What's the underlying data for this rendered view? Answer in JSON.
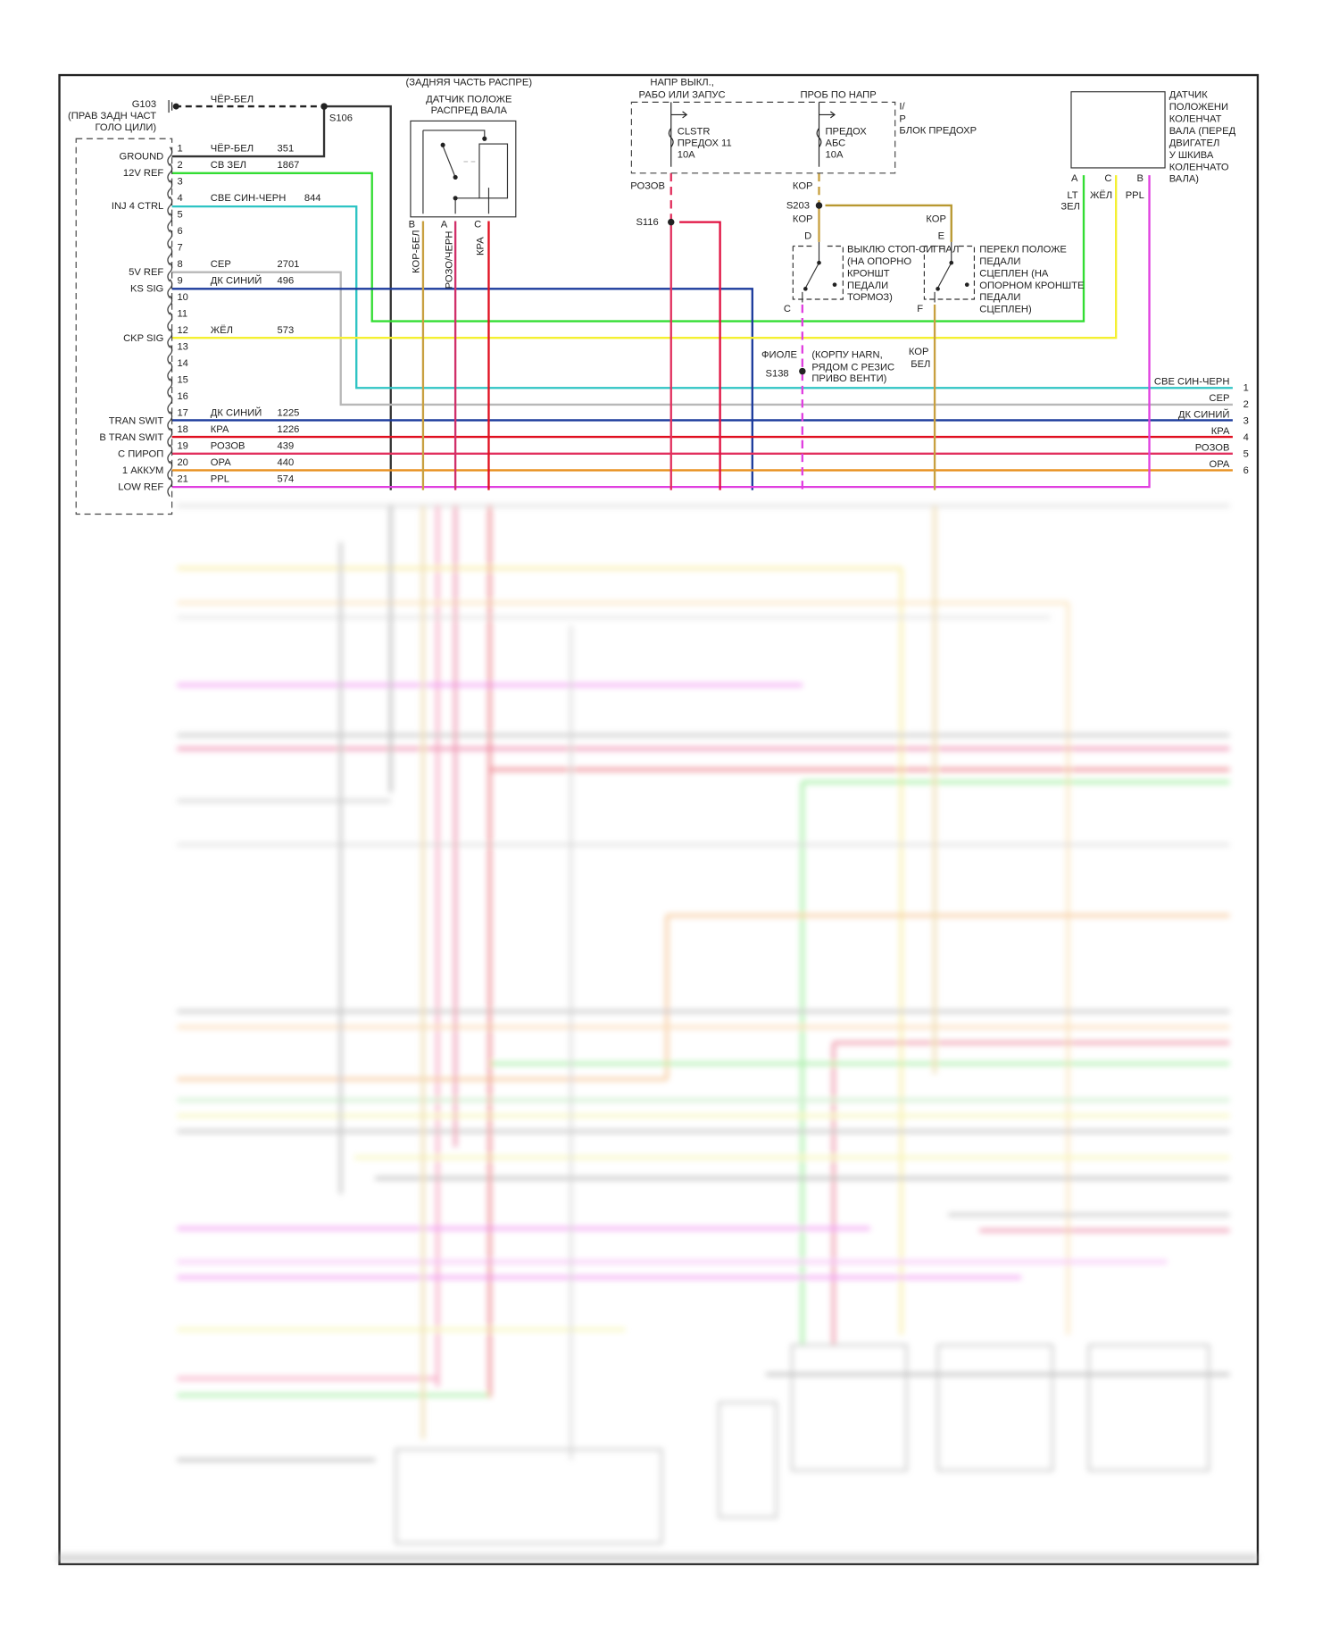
{
  "colors": {
    "black": "#2b2b2b",
    "green": "#33dd33",
    "cyan": "#2ec4c4",
    "gray": "#b8b8b8",
    "dark_blue": "#1c3b9c",
    "yellow": "#f4f030",
    "red": "#e01020",
    "pink": "#e2305e",
    "orange": "#e89020",
    "magenta": "#e040e0",
    "tan": "#c8a040"
  },
  "ground": {
    "id": "G103",
    "note_1": "(ПРАВ ЗАДН ЧАСТ",
    "note_2": "ГОЛО ЦИЛИ)",
    "wire": "ЧЁР-БЕЛ",
    "splice": "S106"
  },
  "pcm_pins": [
    {
      "num": "1",
      "func": "GROUND",
      "color": "ЧЁР-БЕЛ",
      "circuit": "351"
    },
    {
      "num": "2",
      "func": "12V REF",
      "color": "СВ ЗЕЛ",
      "circuit": "1867"
    },
    {
      "num": "3",
      "func": "",
      "color": "",
      "circuit": ""
    },
    {
      "num": "4",
      "func": "INJ 4 CTRL",
      "color": "СВЕ СИН-ЧЕРН",
      "circuit": "844"
    },
    {
      "num": "5",
      "func": "",
      "color": "",
      "circuit": ""
    },
    {
      "num": "6",
      "func": "",
      "color": "",
      "circuit": ""
    },
    {
      "num": "7",
      "func": "",
      "color": "",
      "circuit": ""
    },
    {
      "num": "8",
      "func": "5V REF",
      "color": "СЕР",
      "circuit": "2701"
    },
    {
      "num": "9",
      "func": "KS SIG",
      "color": "ДК СИНИЙ",
      "circuit": "496"
    },
    {
      "num": "10",
      "func": "",
      "color": "",
      "circuit": ""
    },
    {
      "num": "11",
      "func": "",
      "color": "",
      "circuit": ""
    },
    {
      "num": "12",
      "func": "CKP SIG",
      "color": "ЖЁЛ",
      "circuit": "573"
    },
    {
      "num": "13",
      "func": "",
      "color": "",
      "circuit": ""
    },
    {
      "num": "14",
      "func": "",
      "color": "",
      "circuit": ""
    },
    {
      "num": "15",
      "func": "",
      "color": "",
      "circuit": ""
    },
    {
      "num": "16",
      "func": "",
      "color": "",
      "circuit": ""
    },
    {
      "num": "17",
      "func": "TRAN SWIT",
      "color": "ДК СИНИЙ",
      "circuit": "1225"
    },
    {
      "num": "18",
      "func": "B TRAN SWIT",
      "color": "КРА",
      "circuit": "1226"
    },
    {
      "num": "19",
      "func": "С ПИРОП",
      "color": "РОЗОВ",
      "circuit": "439"
    },
    {
      "num": "20",
      "func": "1 АККУМ",
      "color": "ОРА",
      "circuit": "440"
    },
    {
      "num": "21",
      "func": "LOW REF",
      "color": "PPL",
      "circuit": "574"
    }
  ],
  "cam_sensor": {
    "location": "(ЗАДНЯЯ ЧАСТЬ РАСПРЕ)",
    "title_1": "ДАТЧИК ПОЛОЖЕ",
    "title_2": "РАСПРЕД ВАЛА",
    "pins": [
      {
        "pin": "B",
        "wire": "КОР-БЕЛ"
      },
      {
        "pin": "A",
        "wire": "РОЗО/ЧЕРН"
      },
      {
        "pin": "C",
        "wire": "КРА"
      }
    ]
  },
  "fuse_block": {
    "label_1": "НАПР ВЫКЛ.,",
    "label_2": "РАБО ИЛИ ЗАПУС",
    "label_3": "ПРОБ ПО НАПР",
    "side_1": "I/",
    "side_2": "P",
    "side_3": "БЛОК ПРЕДОХР",
    "fuse_a": [
      "CLSTR",
      "ПРЕДОХ 11",
      "10A"
    ],
    "fuse_b": [
      "ПРЕДОХ",
      "АБС",
      "10A"
    ],
    "wire_a": "РОЗОВ",
    "splice_a": "S116",
    "wire_b": "КОР",
    "splice_b": "S203",
    "wire_b2": "КОР",
    "wire_b3": "КОР"
  },
  "brake_switch": {
    "pin_in": "D",
    "pin_out": "C",
    "lines": [
      "ВЫКЛЮ СТОП-СИГНАЛ",
      "(НА ОПОРНО",
      "КРОНШТ",
      "ПЕДАЛИ",
      "ТОРМОЗ)"
    ]
  },
  "clutch_switch": {
    "pin_in": "E",
    "pin_out": "F",
    "lines": [
      "ПЕРЕКЛ ПОЛОЖЕ",
      "ПЕДАЛИ",
      "СЦЕПЛЕН (НА",
      "ОПОРНОМ КРОНШТЕ",
      "ПЕДАЛИ",
      "СЦЕПЛЕН)"
    ]
  },
  "splice_s138": {
    "wire": "ФИОЛЕ",
    "id": "S138",
    "note": [
      "(КОРПУ HARN,",
      "РЯДОМ С РЕЗИС",
      "ПРИВО ВЕНТИ)"
    ],
    "wire_f_1": "КОР",
    "wire_f_2": "БЕЛ"
  },
  "crank_sensor": {
    "lines": [
      "ДАТЧИК",
      "ПОЛОЖЕНИ",
      "КОЛЕНЧАТ",
      "ВАЛА (ПЕРЕД",
      "ДВИГАТЕЛ",
      "У ШКИВА",
      "КОЛЕНЧАТО",
      "ВАЛА)"
    ],
    "pins": [
      {
        "pin": "A",
        "wire_1": "LT",
        "wire_2": "ЗЕЛ"
      },
      {
        "pin": "C",
        "wire_1": "ЖЁЛ"
      },
      {
        "pin": "B",
        "wire_1": "PPL"
      }
    ]
  },
  "right_connector": [
    {
      "num": "1",
      "color": "СВЕ СИН-ЧЕРН"
    },
    {
      "num": "2",
      "color": "СЕР"
    },
    {
      "num": "3",
      "color": "ДК СИНИЙ"
    },
    {
      "num": "4",
      "color": "КРА"
    },
    {
      "num": "5",
      "color": "РОЗОВ"
    },
    {
      "num": "6",
      "color": "ОРА"
    }
  ]
}
